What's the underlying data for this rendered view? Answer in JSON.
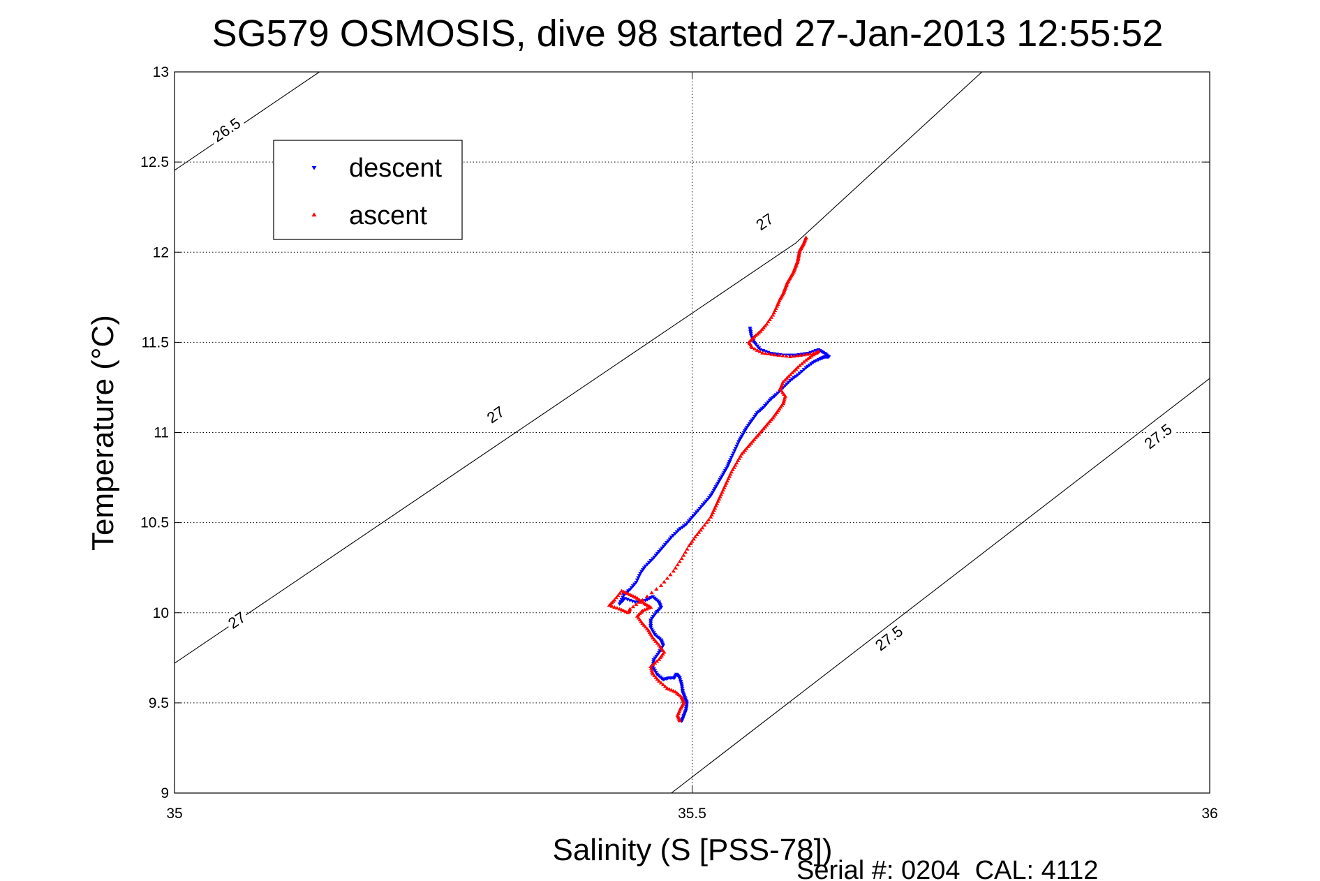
{
  "chart_data": {
    "type": "scatter",
    "title": "SG579 OSMOSIS, dive 98 started 27-Jan-2013 12:55:52",
    "xlabel": "Salinity (S [PSS-78])",
    "ylabel": "Temperature (°C)",
    "xlim": [
      35,
      36
    ],
    "ylim": [
      9,
      13
    ],
    "x_ticks": [
      "35",
      "35.5",
      "36"
    ],
    "y_ticks": [
      "9",
      "9.5",
      "10",
      "10.5",
      "11",
      "11.5",
      "12",
      "12.5",
      "13"
    ],
    "grid": true,
    "legend_position": "top-left",
    "footer": "Serial #: 0204  CAL: 4112",
    "isopycnals": [
      {
        "value": "26.5",
        "points": [
          [
            34.94,
            12.22
          ],
          [
            35.14,
            13.0
          ]
        ]
      },
      {
        "value": "27",
        "points": [
          [
            35.0,
            9.72
          ],
          [
            35.6,
            12.05
          ],
          [
            35.78,
            13.0
          ]
        ]
      },
      {
        "value": "27.5",
        "points": [
          [
            35.48,
            9.0
          ],
          [
            36.0,
            11.3
          ]
        ]
      }
    ],
    "contour_labels": [
      {
        "text": "26.5",
        "x": 35.05,
        "y": 12.68
      },
      {
        "text": "27",
        "x": 35.06,
        "y": 9.96
      },
      {
        "text": "27",
        "x": 35.31,
        "y": 11.1
      },
      {
        "text": "27",
        "x": 35.57,
        "y": 12.17
      },
      {
        "text": "27.5",
        "x": 35.69,
        "y": 9.86
      },
      {
        "text": "27.5",
        "x": 35.95,
        "y": 10.98
      }
    ],
    "series": [
      {
        "name": "descent",
        "color": "#0000ff",
        "marker": "triangle-down",
        "x": [
          35.49,
          35.492,
          35.494,
          35.495,
          35.493,
          35.491,
          35.49,
          35.488,
          35.485,
          35.483,
          35.478,
          35.472,
          35.466,
          35.462,
          35.463,
          35.468,
          35.472,
          35.47,
          35.464,
          35.46,
          35.46,
          35.465,
          35.47,
          35.468,
          35.462,
          35.455,
          35.445,
          35.435,
          35.43,
          35.434,
          35.44,
          35.446,
          35.45,
          35.455,
          35.462,
          35.468,
          35.474,
          35.48,
          35.487,
          35.494,
          35.5,
          35.506,
          35.512,
          35.518,
          35.522,
          35.526,
          35.53,
          35.534,
          35.537,
          35.541,
          35.545,
          35.549,
          35.553,
          35.558,
          35.563,
          35.569,
          35.575,
          35.581,
          35.588,
          35.595,
          35.602,
          35.61,
          35.617,
          35.624,
          35.628,
          35.632,
          35.628,
          35.622,
          35.612,
          35.6,
          35.588,
          35.576,
          35.566,
          35.56,
          35.557,
          35.556
        ],
        "y": [
          9.4,
          9.43,
          9.46,
          9.5,
          9.53,
          9.56,
          9.6,
          9.64,
          9.66,
          9.64,
          9.64,
          9.63,
          9.66,
          9.7,
          9.74,
          9.78,
          9.82,
          9.85,
          9.88,
          9.92,
          9.96,
          10.0,
          10.03,
          10.06,
          10.09,
          10.07,
          10.06,
          10.08,
          10.05,
          10.1,
          10.13,
          10.17,
          10.22,
          10.26,
          10.3,
          10.34,
          10.38,
          10.42,
          10.46,
          10.49,
          10.53,
          10.57,
          10.61,
          10.65,
          10.69,
          10.73,
          10.77,
          10.81,
          10.85,
          10.9,
          10.95,
          10.99,
          11.03,
          11.07,
          11.11,
          11.14,
          11.18,
          11.21,
          11.25,
          11.29,
          11.32,
          11.36,
          11.39,
          11.41,
          11.42,
          11.42,
          11.44,
          11.46,
          11.44,
          11.43,
          11.43,
          11.44,
          11.46,
          11.5,
          11.54,
          11.58
        ]
      },
      {
        "name": "ascent",
        "color": "#ff0000",
        "marker": "triangle-up",
        "x": [
          35.488,
          35.486,
          35.489,
          35.492,
          35.49,
          35.484,
          35.476,
          35.468,
          35.462,
          35.46,
          35.468,
          35.473,
          35.468,
          35.462,
          35.458,
          35.452,
          35.447,
          35.452,
          35.46,
          35.454,
          35.447,
          35.44,
          35.432,
          35.425,
          35.42,
          35.43,
          35.438,
          35.44,
          35.452,
          35.47,
          35.482,
          35.49,
          35.497,
          35.503,
          35.51,
          35.518,
          35.522,
          35.526,
          35.53,
          35.534,
          35.538,
          35.543,
          35.548,
          35.554,
          35.56,
          35.566,
          35.572,
          35.578,
          35.583,
          35.588,
          35.59,
          35.585,
          35.588,
          35.595,
          35.602,
          35.61,
          35.617,
          35.622,
          35.62,
          35.608,
          35.595,
          35.58,
          35.568,
          35.558,
          35.555,
          35.56,
          35.566,
          35.572,
          35.578,
          35.582,
          35.585,
          35.588,
          35.59,
          35.592,
          35.595,
          35.598,
          35.6,
          35.602,
          35.603,
          35.604,
          35.606,
          35.608,
          35.61
        ],
        "y": [
          9.4,
          9.43,
          9.47,
          9.5,
          9.53,
          9.56,
          9.58,
          9.62,
          9.66,
          9.7,
          9.74,
          9.78,
          9.82,
          9.86,
          9.9,
          9.94,
          9.98,
          10.01,
          10.03,
          10.05,
          10.08,
          10.1,
          10.12,
          10.07,
          10.04,
          10.02,
          10.0,
          10.02,
          10.07,
          10.15,
          10.23,
          10.3,
          10.37,
          10.42,
          10.47,
          10.53,
          10.58,
          10.63,
          10.68,
          10.73,
          10.78,
          10.83,
          10.88,
          10.92,
          10.96,
          11.0,
          11.04,
          11.08,
          11.12,
          11.16,
          11.2,
          11.24,
          11.28,
          11.32,
          11.36,
          11.4,
          11.43,
          11.45,
          11.44,
          11.43,
          11.42,
          11.43,
          11.44,
          11.47,
          11.5,
          11.53,
          11.56,
          11.6,
          11.65,
          11.7,
          11.74,
          11.77,
          11.8,
          11.83,
          11.86,
          11.89,
          11.92,
          11.95,
          11.98,
          12.01,
          12.03,
          12.05,
          12.08
        ]
      }
    ]
  }
}
